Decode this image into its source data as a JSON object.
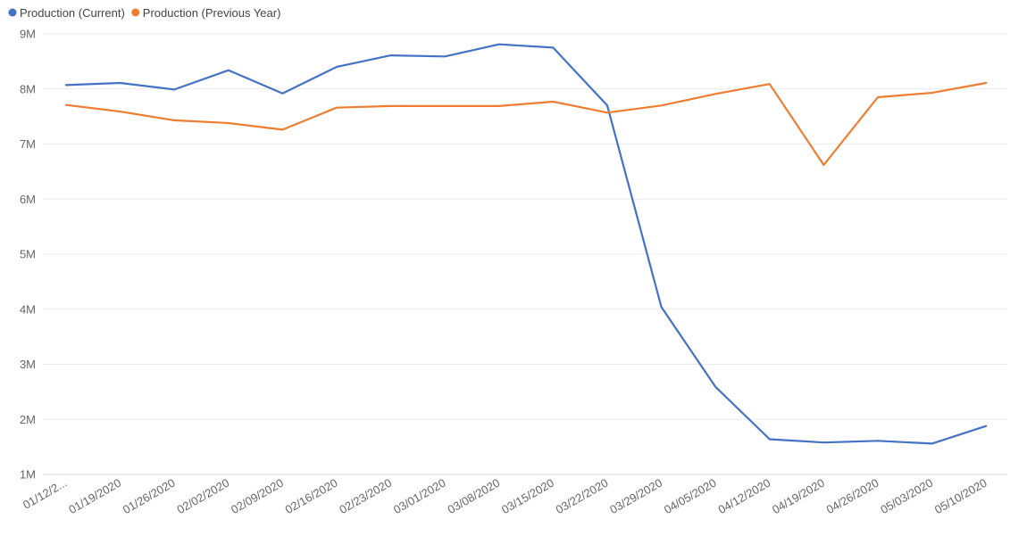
{
  "chart_data": {
    "type": "line",
    "title": "",
    "xlabel": "",
    "ylabel": "",
    "categories": [
      "01/12/2...",
      "01/19/2020",
      "01/26/2020",
      "02/02/2020",
      "02/09/2020",
      "02/16/2020",
      "02/23/2020",
      "03/01/2020",
      "03/08/2020",
      "03/15/2020",
      "03/22/2020",
      "03/29/2020",
      "04/05/2020",
      "04/12/2020",
      "04/19/2020",
      "04/26/2020",
      "05/03/2020",
      "05/10/2020"
    ],
    "y_ticks": [
      {
        "value": 1000000,
        "label": "1M"
      },
      {
        "value": 2000000,
        "label": "2M"
      },
      {
        "value": 3000000,
        "label": "3M"
      },
      {
        "value": 4000000,
        "label": "4M"
      },
      {
        "value": 5000000,
        "label": "5M"
      },
      {
        "value": 6000000,
        "label": "6M"
      },
      {
        "value": 7000000,
        "label": "7M"
      },
      {
        "value": 8000000,
        "label": "8M"
      },
      {
        "value": 9000000,
        "label": "9M"
      }
    ],
    "ylim": [
      1000000,
      9000000
    ],
    "grid": true,
    "legend_position": "top-left",
    "series": [
      {
        "name": "Production (Current)",
        "color": "#4472c4",
        "values": [
          8070000,
          8110000,
          7990000,
          8340000,
          7920000,
          8400000,
          8610000,
          8590000,
          8810000,
          8750000,
          7700000,
          4040000,
          2590000,
          1640000,
          1580000,
          1610000,
          1560000,
          1880000
        ]
      },
      {
        "name": "Production (Previous Year)",
        "color": "#ed7d31",
        "values": [
          7710000,
          7590000,
          7430000,
          7380000,
          7260000,
          7660000,
          7690000,
          7690000,
          7690000,
          7770000,
          7570000,
          7700000,
          7910000,
          8090000,
          6620000,
          7850000,
          7930000,
          8110000
        ]
      }
    ]
  }
}
